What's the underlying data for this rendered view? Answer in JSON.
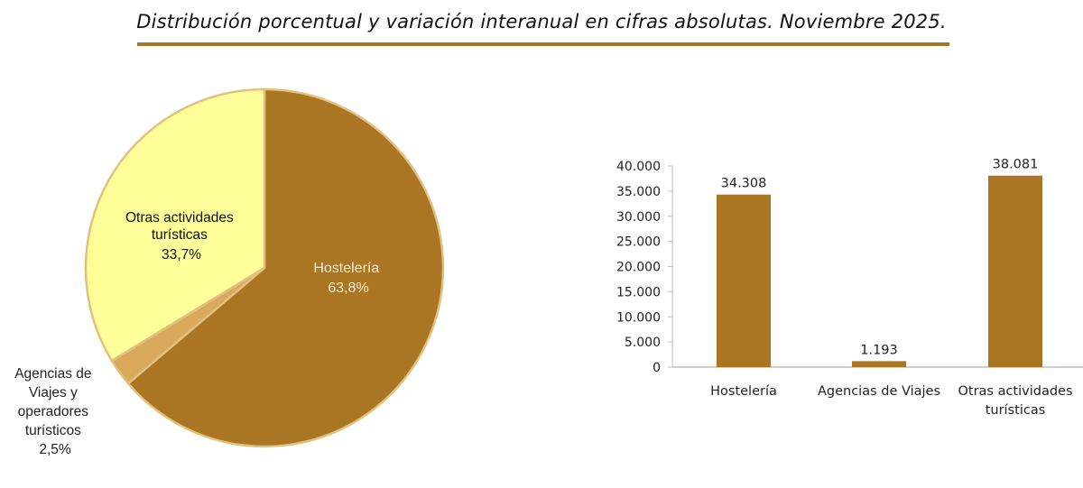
{
  "title": "Distribución porcentual y variación interanual en cifras absolutas. Noviembre 2025.",
  "colors": {
    "hosteleria": "#ab7623",
    "agencias": "#d9a95c",
    "otras": "#ffff99",
    "title_rule": "#ab7623",
    "bar": "#ab7623",
    "axis": "#bfbfbf"
  },
  "pie": {
    "labels": {
      "hosteleria": [
        "Hostelería",
        "63,8%"
      ],
      "agencias": [
        "Agencias de",
        "Viajes y",
        "operadores",
        "turísticos",
        "2,5%"
      ],
      "otras": [
        "Otras actividades",
        "turísticas",
        "33,7%"
      ]
    }
  },
  "bar": {
    "y_ticks": [
      "0",
      "5.000",
      "10.000",
      "15.000",
      "20.000",
      "25.000",
      "30.000",
      "35.000",
      "40.000"
    ],
    "value_labels": [
      "34.308",
      "1.193",
      "38.081"
    ],
    "categories": [
      [
        "Hostelería"
      ],
      [
        "Agencias de Viajes"
      ],
      [
        "Otras actividades",
        "turísticas"
      ]
    ]
  },
  "chart_data": [
    {
      "type": "pie",
      "title": "Distribución porcentual. Noviembre 2025",
      "categories": [
        "Hostelería",
        "Agencias de Viajes y operadores turísticos",
        "Otras actividades turísticas"
      ],
      "values": [
        63.8,
        2.5,
        33.7
      ],
      "unit": "%",
      "colors": [
        "#ab7623",
        "#d9a95c",
        "#ffff99"
      ]
    },
    {
      "type": "bar",
      "title": "Variación interanual en cifras absolutas. Noviembre 2025",
      "categories": [
        "Hostelería",
        "Agencias de Viajes",
        "Otras actividades turísticas"
      ],
      "values": [
        34308,
        1193,
        38081
      ],
      "xlabel": "",
      "ylabel": "",
      "ylim": [
        0,
        40000
      ],
      "yticks": [
        0,
        5000,
        10000,
        15000,
        20000,
        25000,
        30000,
        35000,
        40000
      ],
      "grid": false,
      "legend": "none"
    }
  ]
}
